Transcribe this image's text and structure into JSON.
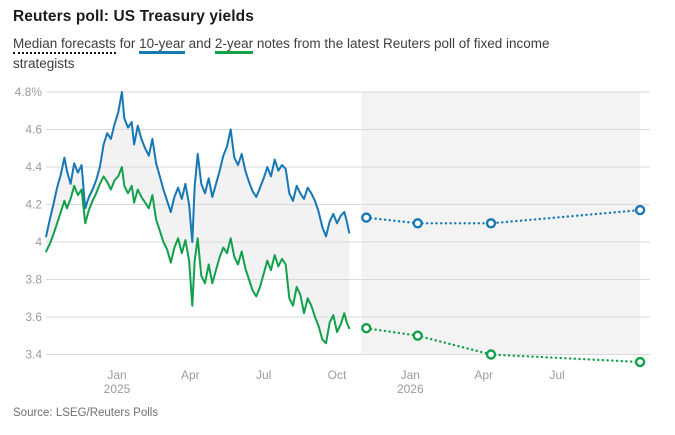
{
  "header": {
    "title": "Reuters poll: US Treasury yields"
  },
  "subtitle": {
    "part1": "Median forecasts",
    "part2": " for ",
    "part3": "10-year",
    "part4": " and ",
    "part5": "2-year",
    "part6": " notes from the latest Reuters poll of fixed income",
    "part7": "strategists"
  },
  "footer": {
    "source": "Source: LSEG/Reuters Polls"
  },
  "chart_data": {
    "type": "line",
    "title": "Reuters poll: US Treasury yields",
    "x_unit": "months since Oct 2024",
    "grid": true,
    "legend_position": "in-subtitle",
    "colors": {
      "ten_year": "#1678b5",
      "two_year": "#12a04b",
      "gridline": "#d9d9d9",
      "band": "#f3f3f3",
      "spread_fill": "#f2f2f2",
      "axis_text": "#9b9b9b",
      "marker_fill": "#ffffff"
    },
    "y_ticks": [
      {
        "label": "4.8%",
        "v": 4.8
      },
      {
        "label": "4.6",
        "v": 4.6
      },
      {
        "label": "4.4",
        "v": 4.4
      },
      {
        "label": "4.2",
        "v": 4.2
      },
      {
        "label": "4",
        "v": 4.0
      },
      {
        "label": "3.8",
        "v": 3.8
      },
      {
        "label": "3.6",
        "v": 3.6
      },
      {
        "label": "3.4",
        "v": 3.4
      }
    ],
    "ylim": [
      3.3,
      4.85
    ],
    "x_ticks": [
      {
        "label": "Jan",
        "year": "2025",
        "m": 3
      },
      {
        "label": "Apr",
        "m": 6
      },
      {
        "label": "Jul",
        "m": 9
      },
      {
        "label": "Oct",
        "m": 12
      },
      {
        "label": "Jan",
        "year": "2026",
        "m": 15
      },
      {
        "label": "Apr",
        "m": 18
      },
      {
        "label": "Jul",
        "m": 21
      }
    ],
    "forecast_band": {
      "from_m": 13.0,
      "to_m": 24.4
    },
    "series": [
      {
        "name": "10-year history",
        "color_key": "ten_year",
        "style": "solid",
        "points": [
          [
            0.1,
            4.03
          ],
          [
            0.25,
            4.12
          ],
          [
            0.4,
            4.2
          ],
          [
            0.55,
            4.29
          ],
          [
            0.7,
            4.36
          ],
          [
            0.85,
            4.45
          ],
          [
            0.95,
            4.38
          ],
          [
            1.1,
            4.31
          ],
          [
            1.25,
            4.42
          ],
          [
            1.4,
            4.37
          ],
          [
            1.55,
            4.41
          ],
          [
            1.7,
            4.18
          ],
          [
            1.85,
            4.24
          ],
          [
            2.0,
            4.28
          ],
          [
            2.15,
            4.33
          ],
          [
            2.3,
            4.4
          ],
          [
            2.45,
            4.52
          ],
          [
            2.6,
            4.58
          ],
          [
            2.75,
            4.55
          ],
          [
            2.9,
            4.63
          ],
          [
            3.05,
            4.69
          ],
          [
            3.2,
            4.8
          ],
          [
            3.3,
            4.66
          ],
          [
            3.45,
            4.61
          ],
          [
            3.6,
            4.64
          ],
          [
            3.7,
            4.52
          ],
          [
            3.85,
            4.62
          ],
          [
            4.0,
            4.55
          ],
          [
            4.15,
            4.5
          ],
          [
            4.3,
            4.46
          ],
          [
            4.45,
            4.55
          ],
          [
            4.6,
            4.42
          ],
          [
            4.75,
            4.35
          ],
          [
            4.9,
            4.28
          ],
          [
            5.05,
            4.22
          ],
          [
            5.2,
            4.16
          ],
          [
            5.35,
            4.24
          ],
          [
            5.5,
            4.29
          ],
          [
            5.65,
            4.23
          ],
          [
            5.8,
            4.31
          ],
          [
            5.95,
            4.2
          ],
          [
            6.08,
            4.0
          ],
          [
            6.18,
            4.3
          ],
          [
            6.3,
            4.47
          ],
          [
            6.45,
            4.31
          ],
          [
            6.6,
            4.26
          ],
          [
            6.75,
            4.34
          ],
          [
            6.9,
            4.24
          ],
          [
            7.05,
            4.31
          ],
          [
            7.2,
            4.38
          ],
          [
            7.35,
            4.46
          ],
          [
            7.5,
            4.51
          ],
          [
            7.65,
            4.6
          ],
          [
            7.8,
            4.45
          ],
          [
            7.95,
            4.41
          ],
          [
            8.1,
            4.47
          ],
          [
            8.25,
            4.38
          ],
          [
            8.4,
            4.32
          ],
          [
            8.55,
            4.27
          ],
          [
            8.7,
            4.24
          ],
          [
            8.85,
            4.29
          ],
          [
            9.0,
            4.34
          ],
          [
            9.15,
            4.4
          ],
          [
            9.3,
            4.35
          ],
          [
            9.45,
            4.44
          ],
          [
            9.6,
            4.38
          ],
          [
            9.75,
            4.41
          ],
          [
            9.9,
            4.39
          ],
          [
            10.05,
            4.26
          ],
          [
            10.2,
            4.22
          ],
          [
            10.35,
            4.3
          ],
          [
            10.5,
            4.26
          ],
          [
            10.65,
            4.23
          ],
          [
            10.8,
            4.29
          ],
          [
            10.95,
            4.26
          ],
          [
            11.1,
            4.22
          ],
          [
            11.25,
            4.16
          ],
          [
            11.4,
            4.08
          ],
          [
            11.55,
            4.03
          ],
          [
            11.7,
            4.11
          ],
          [
            11.85,
            4.15
          ],
          [
            12.0,
            4.1
          ],
          [
            12.15,
            4.14
          ],
          [
            12.3,
            4.16
          ],
          [
            12.4,
            4.11
          ],
          [
            12.5,
            4.05
          ]
        ]
      },
      {
        "name": "2-year history",
        "color_key": "two_year",
        "style": "solid",
        "points": [
          [
            0.1,
            3.95
          ],
          [
            0.25,
            3.99
          ],
          [
            0.4,
            4.04
          ],
          [
            0.55,
            4.1
          ],
          [
            0.7,
            4.16
          ],
          [
            0.85,
            4.22
          ],
          [
            0.95,
            4.18
          ],
          [
            1.1,
            4.23
          ],
          [
            1.25,
            4.3
          ],
          [
            1.4,
            4.25
          ],
          [
            1.55,
            4.28
          ],
          [
            1.7,
            4.1
          ],
          [
            1.85,
            4.17
          ],
          [
            2.0,
            4.22
          ],
          [
            2.15,
            4.26
          ],
          [
            2.3,
            4.31
          ],
          [
            2.45,
            4.35
          ],
          [
            2.6,
            4.32
          ],
          [
            2.75,
            4.28
          ],
          [
            2.9,
            4.33
          ],
          [
            3.05,
            4.35
          ],
          [
            3.2,
            4.4
          ],
          [
            3.3,
            4.3
          ],
          [
            3.45,
            4.26
          ],
          [
            3.6,
            4.3
          ],
          [
            3.7,
            4.21
          ],
          [
            3.85,
            4.28
          ],
          [
            4.0,
            4.24
          ],
          [
            4.15,
            4.21
          ],
          [
            4.3,
            4.18
          ],
          [
            4.45,
            4.25
          ],
          [
            4.6,
            4.12
          ],
          [
            4.75,
            4.06
          ],
          [
            4.9,
            4.0
          ],
          [
            5.05,
            3.96
          ],
          [
            5.2,
            3.89
          ],
          [
            5.35,
            3.97
          ],
          [
            5.5,
            4.02
          ],
          [
            5.65,
            3.94
          ],
          [
            5.8,
            4.01
          ],
          [
            5.95,
            3.9
          ],
          [
            6.08,
            3.66
          ],
          [
            6.18,
            3.9
          ],
          [
            6.3,
            4.02
          ],
          [
            6.45,
            3.82
          ],
          [
            6.6,
            3.78
          ],
          [
            6.75,
            3.88
          ],
          [
            6.9,
            3.78
          ],
          [
            7.05,
            3.85
          ],
          [
            7.2,
            3.92
          ],
          [
            7.35,
            3.97
          ],
          [
            7.5,
            3.94
          ],
          [
            7.65,
            4.02
          ],
          [
            7.8,
            3.92
          ],
          [
            7.95,
            3.88
          ],
          [
            8.1,
            3.95
          ],
          [
            8.25,
            3.86
          ],
          [
            8.4,
            3.8
          ],
          [
            8.55,
            3.74
          ],
          [
            8.7,
            3.71
          ],
          [
            8.85,
            3.76
          ],
          [
            9.0,
            3.83
          ],
          [
            9.15,
            3.9
          ],
          [
            9.3,
            3.85
          ],
          [
            9.45,
            3.93
          ],
          [
            9.6,
            3.87
          ],
          [
            9.75,
            3.91
          ],
          [
            9.9,
            3.88
          ],
          [
            10.05,
            3.7
          ],
          [
            10.2,
            3.66
          ],
          [
            10.35,
            3.76
          ],
          [
            10.5,
            3.72
          ],
          [
            10.65,
            3.62
          ],
          [
            10.8,
            3.7
          ],
          [
            10.95,
            3.66
          ],
          [
            11.1,
            3.6
          ],
          [
            11.25,
            3.55
          ],
          [
            11.4,
            3.48
          ],
          [
            11.55,
            3.46
          ],
          [
            11.7,
            3.57
          ],
          [
            11.85,
            3.61
          ],
          [
            12.0,
            3.52
          ],
          [
            12.15,
            3.56
          ],
          [
            12.3,
            3.62
          ],
          [
            12.4,
            3.57
          ],
          [
            12.5,
            3.54
          ]
        ]
      },
      {
        "name": "10-year forecast",
        "color_key": "ten_year",
        "style": "dotted",
        "markers": true,
        "points": [
          [
            13.2,
            4.13
          ],
          [
            15.3,
            4.1
          ],
          [
            18.3,
            4.1
          ],
          [
            24.4,
            4.17
          ]
        ]
      },
      {
        "name": "2-year forecast",
        "color_key": "two_year",
        "style": "dotted",
        "markers": true,
        "points": [
          [
            13.2,
            3.54
          ],
          [
            15.3,
            3.5
          ],
          [
            18.3,
            3.4
          ],
          [
            24.4,
            3.36
          ]
        ]
      }
    ],
    "spread_fill_between": [
      "10-year history",
      "2-year history"
    ]
  }
}
